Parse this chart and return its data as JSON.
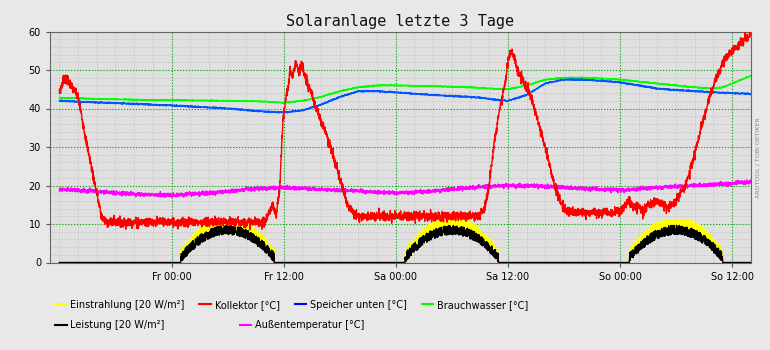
{
  "title": "Solaranlage letzte 3 Tage",
  "bg_color": "#e8e8e8",
  "plot_bg": "#e0e0e0",
  "grid_green": "#00aa00",
  "grid_gray": "#999999",
  "ylim": [
    0,
    60
  ],
  "yticks": [
    0,
    10,
    20,
    30,
    40,
    50,
    60
  ],
  "x_labels": [
    "Fr 00:00",
    "Fr 12:00",
    "Sa 00:00",
    "Sa 12:00",
    "So 00:00",
    "So 12:00"
  ],
  "x_ticks": [
    12,
    24,
    36,
    48,
    60,
    72
  ],
  "vlines": [
    12,
    24,
    36,
    48,
    60,
    72
  ],
  "hlines": [
    0,
    10,
    20,
    30,
    40,
    50,
    60
  ],
  "watermark": "ARDTOOL / TOBI OETIKER",
  "legend": [
    {
      "label": "Einstrahlung [20 W/m²]",
      "color": "#ffff00",
      "row": 0,
      "col": 0
    },
    {
      "label": "Kollektor [°C]",
      "color": "#ff0000",
      "row": 0,
      "col": 1
    },
    {
      "label": "Speicher unten [°C]",
      "color": "#0000ff",
      "row": 0,
      "col": 2
    },
    {
      "label": "Brauchwasser [°C]",
      "color": "#00ff00",
      "row": 0,
      "col": 3
    },
    {
      "label": "Leistung [20 W/m²]",
      "color": "#000000",
      "row": 1,
      "col": 0
    },
    {
      "label": "Außentemperatur [°C]",
      "color": "#ff00ff",
      "row": 1,
      "col": 3
    }
  ]
}
